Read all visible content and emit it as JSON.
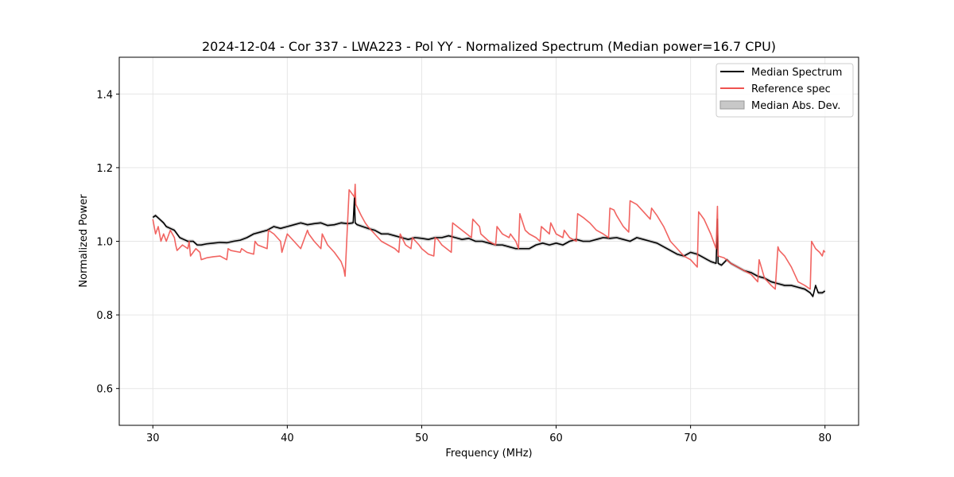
{
  "chart_data": {
    "type": "line",
    "title": "2024-12-04 - Cor 337 - LWA223 - Pol YY - Normalized Spectrum (Median power=16.7 CPU)",
    "xlabel": "Frequency (MHz)",
    "ylabel": "Normalized Power",
    "xlim": [
      27.5,
      82.5
    ],
    "ylim": [
      0.5,
      1.5
    ],
    "xticks": [
      30,
      40,
      50,
      60,
      70,
      80
    ],
    "yticks": [
      0.6,
      0.8,
      1.0,
      1.2,
      1.4
    ],
    "xtick_labels": [
      "30",
      "40",
      "50",
      "60",
      "70",
      "80"
    ],
    "ytick_labels": [
      "0.6",
      "0.8",
      "1.0",
      "1.2",
      "1.4"
    ],
    "grid": true,
    "legend_position": "top-right",
    "legend": [
      {
        "name": "Median Spectrum",
        "kind": "line",
        "color": "#000000"
      },
      {
        "name": "Reference spec",
        "kind": "line",
        "color": "#ef5350"
      },
      {
        "name": "Median Abs. Dev.",
        "kind": "patch",
        "color": "#c8c8c8"
      }
    ],
    "series": [
      {
        "name": "Median Spectrum",
        "color": "#000000",
        "x": [
          30.0,
          30.2,
          30.5,
          30.8,
          31.0,
          31.3,
          31.6,
          32.0,
          32.3,
          32.6,
          33.0,
          33.3,
          33.6,
          34.0,
          34.5,
          35.0,
          35.5,
          36.0,
          36.5,
          37.0,
          37.5,
          38.0,
          38.5,
          39.0,
          39.5,
          40.0,
          40.5,
          41.0,
          41.5,
          42.0,
          42.5,
          43.0,
          43.5,
          44.0,
          44.5,
          44.9,
          45.0,
          45.05,
          45.2,
          45.6,
          46.0,
          46.5,
          47.0,
          47.5,
          48.0,
          48.5,
          49.0,
          49.5,
          50.0,
          50.5,
          51.0,
          51.5,
          52.0,
          52.5,
          53.0,
          53.5,
          54.0,
          54.5,
          55.0,
          55.5,
          56.0,
          56.5,
          57.0,
          57.5,
          58.0,
          58.5,
          59.0,
          59.5,
          60.0,
          60.5,
          61.0,
          61.5,
          62.0,
          62.5,
          63.0,
          63.5,
          64.0,
          64.5,
          65.0,
          65.5,
          66.0,
          66.5,
          67.0,
          67.5,
          68.0,
          68.5,
          69.0,
          69.5,
          70.0,
          70.5,
          71.0,
          71.5,
          71.9,
          72.0,
          72.05,
          72.3,
          72.7,
          73.0,
          73.5,
          74.0,
          74.5,
          75.0,
          75.5,
          76.0,
          76.5,
          77.0,
          77.5,
          78.0,
          78.5,
          78.9,
          79.1,
          79.3,
          79.5,
          79.8,
          80.0
        ],
        "y": [
          1.065,
          1.07,
          1.06,
          1.05,
          1.04,
          1.035,
          1.03,
          1.01,
          1.005,
          1.0,
          1.0,
          0.99,
          0.99,
          0.993,
          0.995,
          0.997,
          0.996,
          1.0,
          1.003,
          1.01,
          1.02,
          1.025,
          1.03,
          1.04,
          1.035,
          1.04,
          1.045,
          1.05,
          1.045,
          1.048,
          1.05,
          1.043,
          1.045,
          1.05,
          1.048,
          1.05,
          1.12,
          1.05,
          1.045,
          1.04,
          1.035,
          1.03,
          1.02,
          1.02,
          1.015,
          1.01,
          1.005,
          1.01,
          1.008,
          1.005,
          1.01,
          1.01,
          1.015,
          1.01,
          1.005,
          1.008,
          1.0,
          1.0,
          0.995,
          0.99,
          0.99,
          0.985,
          0.98,
          0.98,
          0.98,
          0.99,
          0.995,
          0.99,
          0.995,
          0.99,
          1.0,
          1.005,
          1.0,
          1.0,
          1.005,
          1.01,
          1.008,
          1.01,
          1.005,
          1.0,
          1.01,
          1.005,
          1.0,
          0.995,
          0.985,
          0.975,
          0.965,
          0.96,
          0.97,
          0.965,
          0.955,
          0.945,
          0.94,
          1.06,
          0.94,
          0.935,
          0.95,
          0.94,
          0.93,
          0.92,
          0.915,
          0.905,
          0.9,
          0.89,
          0.885,
          0.88,
          0.88,
          0.875,
          0.87,
          0.86,
          0.85,
          0.88,
          0.86,
          0.86,
          0.865
        ]
      },
      {
        "name": "Reference spec",
        "color": "#ef5350",
        "x": [
          30.0,
          30.2,
          30.4,
          30.6,
          30.8,
          31.0,
          31.3,
          31.6,
          31.7,
          31.8,
          32.2,
          32.6,
          32.7,
          32.8,
          33.2,
          33.5,
          33.6,
          34.0,
          34.5,
          35.0,
          35.5,
          35.6,
          35.8,
          36.5,
          36.6,
          37.0,
          37.5,
          37.6,
          37.8,
          38.5,
          38.6,
          39.0,
          39.5,
          39.6,
          40.0,
          40.5,
          41.0,
          41.5,
          41.6,
          42.0,
          42.5,
          42.6,
          43.0,
          43.5,
          44.0,
          44.2,
          44.3,
          44.6,
          45.0,
          45.05,
          45.1,
          45.5,
          45.8,
          46.0,
          46.5,
          47.0,
          47.5,
          48.0,
          48.3,
          48.4,
          48.8,
          49.2,
          49.3,
          49.8,
          50.0,
          50.5,
          50.9,
          51.0,
          51.2,
          51.5,
          52.2,
          52.3,
          53.0,
          53.7,
          53.8,
          54.3,
          54.4,
          55.0,
          55.5,
          55.6,
          56.0,
          56.5,
          56.6,
          57.0,
          57.2,
          57.3,
          57.7,
          58.0,
          58.5,
          58.8,
          58.9,
          59.5,
          59.6,
          60.0,
          60.5,
          60.6,
          61.0,
          61.5,
          61.6,
          62.0,
          62.5,
          63.0,
          63.5,
          63.9,
          64.0,
          64.3,
          64.5,
          65.0,
          65.4,
          65.5,
          66.0,
          66.5,
          67.0,
          67.1,
          67.5,
          68.0,
          68.5,
          69.0,
          69.5,
          70.0,
          70.5,
          70.6,
          71.0,
          71.5,
          71.9,
          72.0,
          72.05,
          72.5,
          73.0,
          73.5,
          74.0,
          74.5,
          75.0,
          75.1,
          75.5,
          76.0,
          76.3,
          76.5,
          76.6,
          77.0,
          77.5,
          78.0,
          78.5,
          78.9,
          79.0,
          79.3,
          79.6,
          79.8,
          79.9,
          80.0
        ],
        "y": [
          1.06,
          1.02,
          1.04,
          1.0,
          1.02,
          1.0,
          1.03,
          1.01,
          0.99,
          0.975,
          0.99,
          0.98,
          1.0,
          0.96,
          0.98,
          0.97,
          0.95,
          0.955,
          0.958,
          0.96,
          0.95,
          0.98,
          0.975,
          0.97,
          0.98,
          0.97,
          0.965,
          1.0,
          0.99,
          0.98,
          1.03,
          1.02,
          1.0,
          0.97,
          1.02,
          1.0,
          0.98,
          1.03,
          1.02,
          1.0,
          0.98,
          1.02,
          0.99,
          0.97,
          0.945,
          0.925,
          0.905,
          1.14,
          1.12,
          1.155,
          1.1,
          1.07,
          1.05,
          1.04,
          1.02,
          1.0,
          0.99,
          0.98,
          0.97,
          1.02,
          0.99,
          0.98,
          1.01,
          0.99,
          0.98,
          0.965,
          0.96,
          1.01,
          1.005,
          0.99,
          0.97,
          1.05,
          1.03,
          1.01,
          1.06,
          1.04,
          1.02,
          1.0,
          0.99,
          1.04,
          1.02,
          1.01,
          1.02,
          1.0,
          0.98,
          1.075,
          1.03,
          1.02,
          1.01,
          1.0,
          1.04,
          1.02,
          1.05,
          1.02,
          1.01,
          1.03,
          1.01,
          1.0,
          1.075,
          1.065,
          1.05,
          1.03,
          1.02,
          1.01,
          1.09,
          1.085,
          1.07,
          1.04,
          1.025,
          1.11,
          1.1,
          1.08,
          1.06,
          1.09,
          1.07,
          1.04,
          1.0,
          0.98,
          0.96,
          0.95,
          0.93,
          1.08,
          1.06,
          1.02,
          0.98,
          1.095,
          0.96,
          0.955,
          0.94,
          0.93,
          0.92,
          0.91,
          0.89,
          0.95,
          0.9,
          0.88,
          0.87,
          0.985,
          0.975,
          0.96,
          0.93,
          0.89,
          0.88,
          0.87,
          1.0,
          0.98,
          0.97,
          0.96,
          0.975,
          0.97
        ]
      }
    ]
  }
}
